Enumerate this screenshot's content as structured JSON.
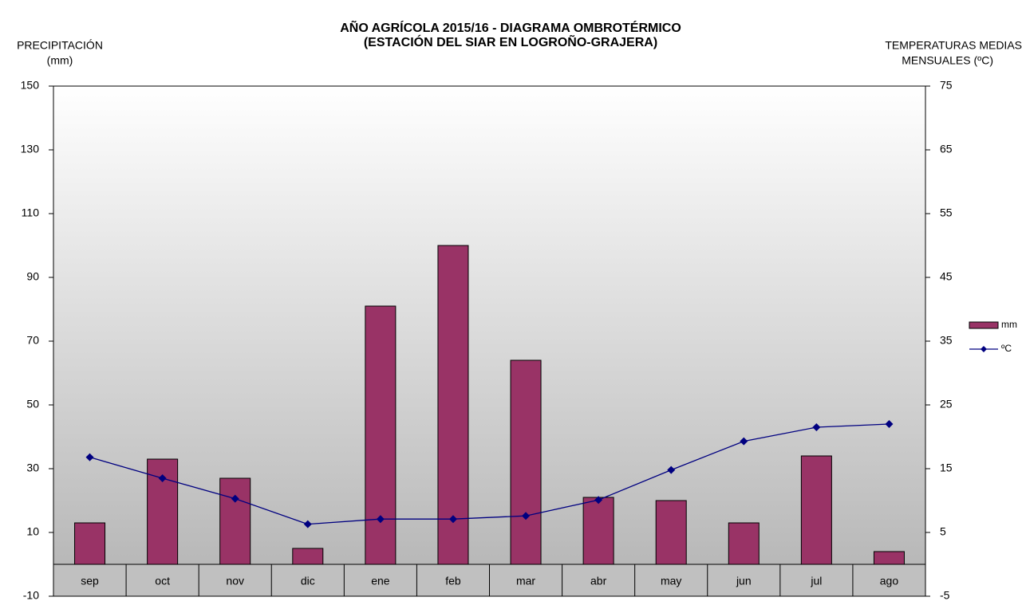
{
  "chart_data": {
    "type": "bar_line",
    "title": "AÑO AGRÍCOLA 2015/16 - DIAGRAMA OMBROTÉRMICO",
    "subtitle": "(ESTACIÓN DEL SIAR EN  LOGROÑO-GRAJERA)",
    "y_label": [
      "PRECIPITACIÓN",
      "(mm)"
    ],
    "y2_label": [
      "TEMPERATURAS  MEDIAS",
      "MENSUALES  (ºC)"
    ],
    "categories": [
      "sep",
      "oct",
      "nov",
      "dic",
      "ene",
      "feb",
      "mar",
      "abr",
      "may",
      "jun",
      "jul",
      "ago"
    ],
    "series": [
      {
        "name": "mm",
        "type": "bar",
        "color": "#993366",
        "values": [
          13,
          33,
          27,
          5,
          81,
          100,
          64,
          21,
          20,
          13,
          34,
          4
        ]
      },
      {
        "name": "ºC",
        "type": "line",
        "axis": "y2",
        "color": "#000080",
        "values": [
          16.8,
          13.5,
          10.3,
          6.3,
          7.1,
          7.1,
          7.6,
          10.1,
          14.8,
          19.3,
          21.5,
          22.0
        ]
      }
    ],
    "ylim": [
      -10,
      150
    ],
    "yticks": [
      -10,
      10,
      30,
      50,
      70,
      90,
      110,
      130,
      150
    ],
    "y2lim": [
      -5,
      75
    ],
    "y2ticks": [
      -5,
      5,
      15,
      25,
      35,
      45,
      55,
      65,
      75
    ],
    "grid": false,
    "legend": "right"
  }
}
